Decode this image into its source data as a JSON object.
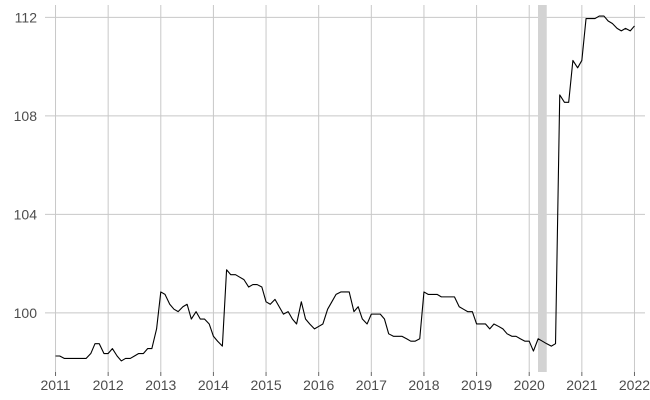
{
  "chart_data": {
    "type": "line",
    "title": "",
    "xlabel": "",
    "ylabel": "",
    "xlim": [
      2010.8,
      2022.2
    ],
    "ylim": [
      97.6,
      112.5
    ],
    "x_ticks": [
      2011,
      2012,
      2013,
      2014,
      2015,
      2016,
      2017,
      2018,
      2019,
      2020,
      2021,
      2022
    ],
    "x_tick_labels": [
      "2011",
      "2012",
      "2013",
      "2014",
      "2015",
      "2016",
      "2017",
      "2018",
      "2019",
      "2020",
      "2021",
      "2022"
    ],
    "y_ticks": [
      100,
      104,
      108,
      112
    ],
    "y_tick_labels": [
      "100",
      "104",
      "108",
      "112"
    ],
    "grid": true,
    "legend": "none",
    "shaded_band": {
      "x_start": 2020.167,
      "x_end": 2020.333,
      "color": "#d3d3d3"
    },
    "series": [
      {
        "color": "#000000",
        "points": [
          [
            2011.0,
            98.25
          ],
          [
            2011.08,
            98.25
          ],
          [
            2011.17,
            98.15
          ],
          [
            2011.25,
            98.15
          ],
          [
            2011.33,
            98.15
          ],
          [
            2011.42,
            98.15
          ],
          [
            2011.5,
            98.15
          ],
          [
            2011.58,
            98.15
          ],
          [
            2011.67,
            98.35
          ],
          [
            2011.75,
            98.75
          ],
          [
            2011.83,
            98.75
          ],
          [
            2011.92,
            98.35
          ],
          [
            2012.0,
            98.35
          ],
          [
            2012.08,
            98.55
          ],
          [
            2012.17,
            98.25
          ],
          [
            2012.25,
            98.05
          ],
          [
            2012.33,
            98.15
          ],
          [
            2012.42,
            98.15
          ],
          [
            2012.5,
            98.25
          ],
          [
            2012.58,
            98.35
          ],
          [
            2012.67,
            98.35
          ],
          [
            2012.75,
            98.55
          ],
          [
            2012.83,
            98.55
          ],
          [
            2012.92,
            99.35
          ],
          [
            2013.0,
            100.85
          ],
          [
            2013.08,
            100.75
          ],
          [
            2013.17,
            100.35
          ],
          [
            2013.25,
            100.15
          ],
          [
            2013.33,
            100.05
          ],
          [
            2013.42,
            100.25
          ],
          [
            2013.5,
            100.35
          ],
          [
            2013.58,
            99.75
          ],
          [
            2013.67,
            100.05
          ],
          [
            2013.75,
            99.75
          ],
          [
            2013.83,
            99.75
          ],
          [
            2013.92,
            99.55
          ],
          [
            2014.0,
            99.05
          ],
          [
            2014.08,
            98.85
          ],
          [
            2014.17,
            98.65
          ],
          [
            2014.25,
            101.75
          ],
          [
            2014.33,
            101.55
          ],
          [
            2014.42,
            101.55
          ],
          [
            2014.5,
            101.45
          ],
          [
            2014.58,
            101.35
          ],
          [
            2014.67,
            101.05
          ],
          [
            2014.75,
            101.15
          ],
          [
            2014.83,
            101.15
          ],
          [
            2014.92,
            101.05
          ],
          [
            2015.0,
            100.45
          ],
          [
            2015.08,
            100.35
          ],
          [
            2015.17,
            100.55
          ],
          [
            2015.25,
            100.25
          ],
          [
            2015.33,
            99.95
          ],
          [
            2015.42,
            100.05
          ],
          [
            2015.5,
            99.75
          ],
          [
            2015.58,
            99.55
          ],
          [
            2015.67,
            100.45
          ],
          [
            2015.75,
            99.75
          ],
          [
            2015.83,
            99.55
          ],
          [
            2015.92,
            99.35
          ],
          [
            2016.0,
            99.45
          ],
          [
            2016.08,
            99.55
          ],
          [
            2016.17,
            100.15
          ],
          [
            2016.25,
            100.45
          ],
          [
            2016.33,
            100.75
          ],
          [
            2016.42,
            100.85
          ],
          [
            2016.5,
            100.85
          ],
          [
            2016.58,
            100.85
          ],
          [
            2016.67,
            100.05
          ],
          [
            2016.75,
            100.25
          ],
          [
            2016.83,
            99.75
          ],
          [
            2016.92,
            99.55
          ],
          [
            2017.0,
            99.95
          ],
          [
            2017.08,
            99.95
          ],
          [
            2017.17,
            99.95
          ],
          [
            2017.25,
            99.75
          ],
          [
            2017.33,
            99.15
          ],
          [
            2017.42,
            99.05
          ],
          [
            2017.5,
            99.05
          ],
          [
            2017.58,
            99.05
          ],
          [
            2017.67,
            98.95
          ],
          [
            2017.75,
            98.85
          ],
          [
            2017.83,
            98.85
          ],
          [
            2017.92,
            98.95
          ],
          [
            2018.0,
            100.85
          ],
          [
            2018.08,
            100.75
          ],
          [
            2018.17,
            100.75
          ],
          [
            2018.25,
            100.75
          ],
          [
            2018.33,
            100.65
          ],
          [
            2018.42,
            100.65
          ],
          [
            2018.5,
            100.65
          ],
          [
            2018.58,
            100.65
          ],
          [
            2018.67,
            100.25
          ],
          [
            2018.75,
            100.15
          ],
          [
            2018.83,
            100.05
          ],
          [
            2018.92,
            100.05
          ],
          [
            2019.0,
            99.55
          ],
          [
            2019.08,
            99.55
          ],
          [
            2019.17,
            99.55
          ],
          [
            2019.25,
            99.35
          ],
          [
            2019.33,
            99.55
          ],
          [
            2019.42,
            99.45
          ],
          [
            2019.5,
            99.35
          ],
          [
            2019.58,
            99.15
          ],
          [
            2019.67,
            99.05
          ],
          [
            2019.75,
            99.05
          ],
          [
            2019.83,
            98.95
          ],
          [
            2019.92,
            98.85
          ],
          [
            2020.0,
            98.85
          ],
          [
            2020.08,
            98.45
          ],
          [
            2020.17,
            98.95
          ],
          [
            2020.25,
            98.85
          ],
          [
            2020.33,
            98.75
          ],
          [
            2020.42,
            98.65
          ],
          [
            2020.5,
            98.75
          ],
          [
            2020.58,
            108.85
          ],
          [
            2020.67,
            108.55
          ],
          [
            2020.75,
            108.55
          ],
          [
            2020.83,
            110.25
          ],
          [
            2020.92,
            109.95
          ],
          [
            2021.0,
            110.25
          ],
          [
            2021.08,
            111.95
          ],
          [
            2021.17,
            111.95
          ],
          [
            2021.25,
            111.95
          ],
          [
            2021.33,
            112.05
          ],
          [
            2021.42,
            112.05
          ],
          [
            2021.5,
            111.85
          ],
          [
            2021.58,
            111.75
          ],
          [
            2021.67,
            111.55
          ],
          [
            2021.75,
            111.45
          ],
          [
            2021.83,
            111.55
          ],
          [
            2021.92,
            111.45
          ],
          [
            2022.0,
            111.65
          ]
        ]
      }
    ]
  }
}
